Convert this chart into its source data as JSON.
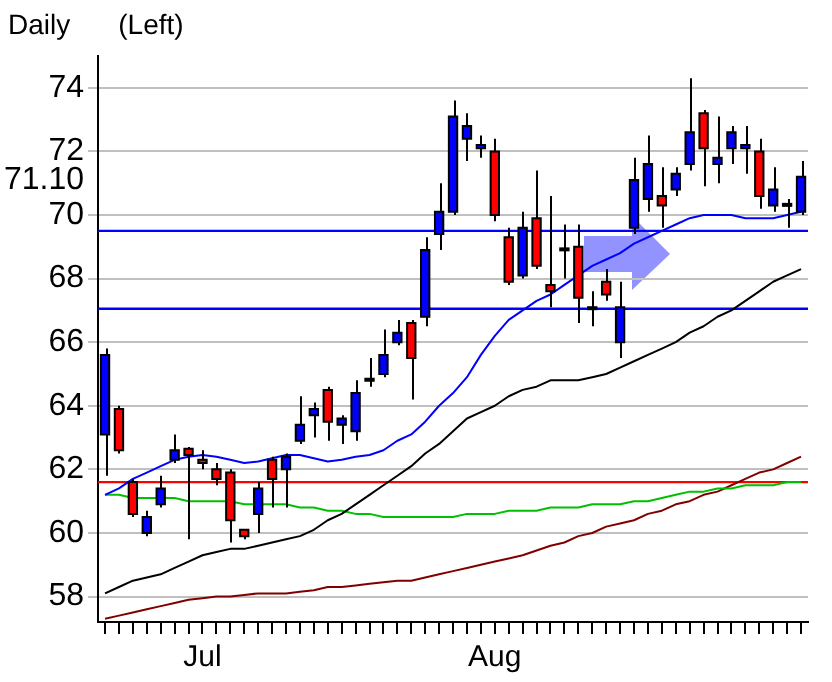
{
  "chart_data": {
    "type": "candlestick",
    "title": "Daily",
    "subtitle": "(Left)",
    "categories": [
      null,
      null,
      null,
      null,
      null,
      null,
      null,
      "Jul",
      null,
      null,
      null,
      null,
      null,
      null,
      null,
      null,
      null,
      null,
      null,
      null,
      null,
      null,
      null,
      null,
      null,
      null,
      null,
      null,
      "Aug",
      null,
      null,
      null,
      null,
      null,
      null,
      null,
      null,
      null,
      null,
      null,
      null,
      null,
      null,
      null,
      null,
      null,
      null,
      null,
      null,
      null,
      null
    ],
    "ohlc": [
      [
        63.1,
        65.8,
        61.8,
        65.6
      ],
      [
        63.9,
        64.0,
        62.5,
        62.6
      ],
      [
        61.6,
        61.7,
        60.5,
        60.6
      ],
      [
        60.0,
        60.7,
        59.9,
        60.5
      ],
      [
        60.9,
        61.8,
        60.8,
        61.4
      ],
      [
        62.3,
        63.1,
        62.2,
        62.6
      ],
      [
        62.65,
        62.7,
        59.8,
        62.45
      ],
      [
        62.3,
        62.6,
        62.0,
        62.2
      ],
      [
        62.0,
        62.2,
        61.5,
        61.7
      ],
      [
        61.9,
        62.0,
        59.7,
        60.4
      ],
      [
        60.1,
        60.1,
        59.8,
        59.9
      ],
      [
        60.6,
        61.6,
        60.0,
        61.4
      ],
      [
        62.3,
        62.4,
        60.8,
        61.7
      ],
      [
        62.0,
        62.5,
        60.8,
        62.4
      ],
      [
        62.9,
        64.3,
        62.8,
        63.4
      ],
      [
        63.7,
        64.1,
        63.0,
        63.9
      ],
      [
        64.5,
        64.6,
        62.9,
        63.5
      ],
      [
        63.4,
        63.7,
        62.8,
        63.6
      ],
      [
        63.2,
        64.8,
        62.9,
        64.4
      ],
      [
        64.8,
        65.5,
        64.6,
        64.85
      ],
      [
        65.0,
        66.4,
        64.9,
        65.6
      ],
      [
        66.0,
        66.7,
        65.9,
        66.3
      ],
      [
        66.6,
        66.7,
        64.2,
        65.5
      ],
      [
        66.8,
        69.3,
        66.5,
        68.9
      ],
      [
        69.4,
        71.0,
        68.9,
        70.1
      ],
      [
        70.1,
        73.6,
        70.0,
        73.1
      ],
      [
        72.4,
        73.2,
        71.7,
        72.8
      ],
      [
        72.1,
        72.5,
        71.8,
        72.2
      ],
      [
        72.0,
        72.4,
        69.8,
        70.0
      ],
      [
        69.3,
        69.6,
        67.8,
        67.9
      ],
      [
        68.1,
        70.1,
        68.0,
        69.6
      ],
      [
        69.9,
        71.4,
        68.3,
        68.4
      ],
      [
        67.8,
        70.6,
        67.1,
        67.6
      ],
      [
        68.9,
        69.7,
        68.0,
        68.95
      ],
      [
        69.0,
        69.7,
        66.6,
        67.4
      ],
      [
        67.05,
        67.6,
        66.5,
        67.1
      ],
      [
        67.9,
        68.3,
        67.3,
        67.5
      ],
      [
        66.0,
        67.9,
        65.5,
        67.1
      ],
      [
        69.6,
        71.8,
        69.4,
        71.1
      ],
      [
        70.5,
        72.5,
        70.1,
        71.6
      ],
      [
        70.6,
        71.5,
        69.6,
        70.3
      ],
      [
        70.8,
        71.5,
        70.6,
        71.3
      ],
      [
        71.6,
        74.3,
        71.4,
        72.6
      ],
      [
        73.2,
        73.3,
        70.9,
        72.1
      ],
      [
        71.6,
        73.1,
        71.0,
        71.8
      ],
      [
        72.1,
        72.8,
        71.6,
        72.6
      ],
      [
        72.1,
        72.8,
        71.3,
        72.2
      ],
      [
        72.0,
        72.4,
        70.2,
        70.6
      ],
      [
        70.3,
        71.5,
        70.1,
        70.8
      ],
      [
        70.3,
        70.5,
        69.6,
        70.35
      ],
      [
        70.1,
        71.7,
        70.0,
        71.2
      ]
    ],
    "colors": [
      "#0000ff",
      "#ff0000",
      "#ff0000",
      "#0000ff",
      "#0000ff",
      "#0000ff",
      "#ff0000",
      "#ff0000",
      "#ff0000",
      "#ff0000",
      "#ff0000",
      "#0000ff",
      "#ff0000",
      "#0000ff",
      "#0000ff",
      "#0000ff",
      "#ff0000",
      "#0000ff",
      "#0000ff",
      "#0000ff",
      "#0000ff",
      "#0000ff",
      "#ff0000",
      "#0000ff",
      "#0000ff",
      "#0000ff",
      "#0000ff",
      "#0000ff",
      "#ff0000",
      "#ff0000",
      "#0000ff",
      "#ff0000",
      "#ff0000",
      "#0000ff",
      "#ff0000",
      "#0000ff",
      "#ff0000",
      "#0000ff",
      "#0000ff",
      "#0000ff",
      "#ff0000",
      "#0000ff",
      "#0000ff",
      "#ff0000",
      "#0000ff",
      "#0000ff",
      "#0000ff",
      "#ff0000",
      "#0000ff",
      "#0000ff",
      "#0000ff"
    ],
    "series": [
      {
        "type": "line",
        "color": "#0000ff",
        "values": [
          61.2,
          61.4,
          61.7,
          61.9,
          62.1,
          62.3,
          62.4,
          62.45,
          62.4,
          62.3,
          62.2,
          62.25,
          62.35,
          62.45,
          62.45,
          62.35,
          62.25,
          62.3,
          62.4,
          62.45,
          62.6,
          62.9,
          63.1,
          63.5,
          64.0,
          64.4,
          64.9,
          65.6,
          66.2,
          66.7,
          67.0,
          67.3,
          67.5,
          67.8,
          68.1,
          68.4,
          68.6,
          68.8,
          69.1,
          69.3,
          69.5,
          69.7,
          69.9,
          70.0,
          70.0,
          70.0,
          69.9,
          69.9,
          69.9,
          70.0,
          70.1
        ]
      },
      {
        "type": "line",
        "color": "#000000",
        "values": [
          58.1,
          58.3,
          58.5,
          58.6,
          58.7,
          58.9,
          59.1,
          59.3,
          59.4,
          59.5,
          59.5,
          59.6,
          59.7,
          59.8,
          59.9,
          60.1,
          60.4,
          60.6,
          60.9,
          61.2,
          61.5,
          61.8,
          62.1,
          62.5,
          62.8,
          63.2,
          63.6,
          63.8,
          64.0,
          64.3,
          64.5,
          64.6,
          64.8,
          64.8,
          64.8,
          64.9,
          65.0,
          65.2,
          65.4,
          65.6,
          65.8,
          66.0,
          66.3,
          66.5,
          66.8,
          67.0,
          67.3,
          67.6,
          67.9,
          68.1,
          68.3
        ]
      },
      {
        "type": "line",
        "color": "#00c000",
        "values": [
          61.2,
          61.2,
          61.1,
          61.1,
          61.1,
          61.1,
          61.0,
          61.0,
          61.0,
          61.0,
          60.9,
          60.9,
          60.9,
          60.9,
          60.8,
          60.8,
          60.7,
          60.7,
          60.6,
          60.6,
          60.5,
          60.5,
          60.5,
          60.5,
          60.5,
          60.5,
          60.6,
          60.6,
          60.6,
          60.7,
          60.7,
          60.7,
          60.8,
          60.8,
          60.8,
          60.9,
          60.9,
          60.9,
          61.0,
          61.0,
          61.1,
          61.2,
          61.3,
          61.3,
          61.4,
          61.4,
          61.5,
          61.5,
          61.5,
          61.6,
          61.6
        ]
      },
      {
        "type": "line",
        "color": "#800000",
        "values": [
          57.3,
          57.4,
          57.5,
          57.6,
          57.7,
          57.8,
          57.9,
          57.95,
          58.0,
          58.0,
          58.05,
          58.1,
          58.1,
          58.1,
          58.15,
          58.2,
          58.3,
          58.3,
          58.35,
          58.4,
          58.45,
          58.5,
          58.5,
          58.6,
          58.7,
          58.8,
          58.9,
          59.0,
          59.1,
          59.2,
          59.3,
          59.45,
          59.6,
          59.7,
          59.9,
          60.0,
          60.2,
          60.3,
          60.4,
          60.6,
          60.7,
          60.9,
          61.0,
          61.2,
          61.3,
          61.5,
          61.7,
          61.9,
          62.0,
          62.2,
          62.4
        ]
      }
    ],
    "ref_lines": [
      {
        "axis": "y",
        "value": 69.5,
        "color": "#0000ff"
      },
      {
        "axis": "y",
        "value": 67.05,
        "color": "#0000ff"
      },
      {
        "axis": "y",
        "value": 61.6,
        "color": "#ff0000"
      }
    ],
    "ylim": [
      57.2,
      75
    ],
    "yticks": [
      58,
      60,
      62,
      64,
      66,
      68,
      70,
      {
        "value": 71.1,
        "label": "71.10"
      },
      72,
      74
    ],
    "grid": "y",
    "line_style": "solid",
    "marker": "none",
    "legend": false
  }
}
